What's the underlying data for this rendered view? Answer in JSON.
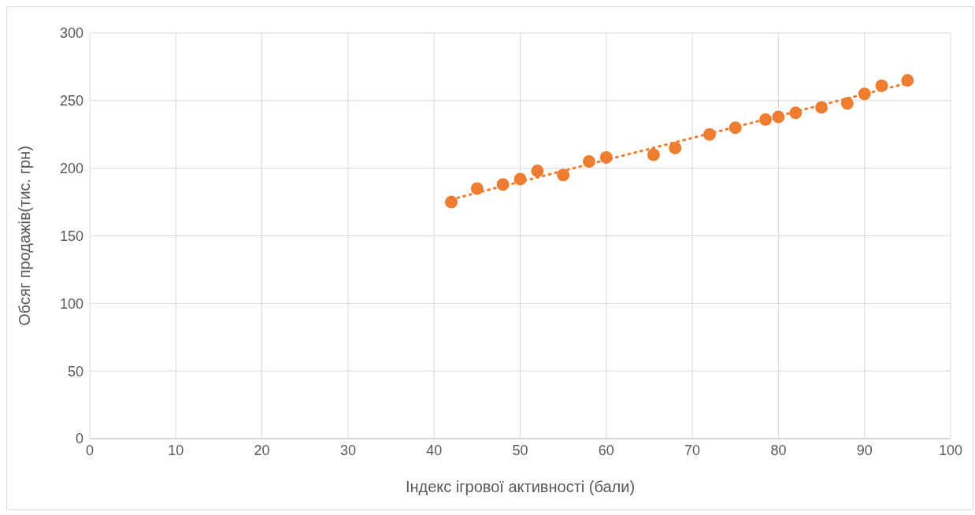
{
  "chart_data": {
    "type": "scatter",
    "xlabel": "Індекс ігрової активності (бали)",
    "ylabel": "Обсяг продажів(тис. грн)",
    "xlim": [
      0,
      100
    ],
    "xticks": [
      0,
      10,
      20,
      30,
      40,
      50,
      60,
      70,
      80,
      90,
      100
    ],
    "ylim": [
      0,
      300
    ],
    "yticks": [
      0,
      50,
      100,
      150,
      200,
      250,
      300
    ],
    "grid": true,
    "legend": false,
    "marker": "circle",
    "series": [
      {
        "type": "scatter",
        "color": "#ed7d31",
        "x": [
          42,
          45,
          48,
          50,
          52,
          55,
          58,
          60,
          65.5,
          68,
          72,
          75,
          78.5,
          80,
          82,
          85,
          88,
          90,
          92,
          95
        ],
        "values": [
          175,
          185,
          188,
          192,
          198,
          195,
          205,
          208,
          210,
          215,
          225,
          230,
          236,
          238,
          241,
          245,
          248,
          255,
          261,
          265
        ]
      },
      {
        "type": "line",
        "color": "#ed7d31",
        "line_style": "dotted",
        "marker": "none",
        "x": [
          42,
          95
        ],
        "values": [
          177,
          263
        ]
      }
    ]
  }
}
